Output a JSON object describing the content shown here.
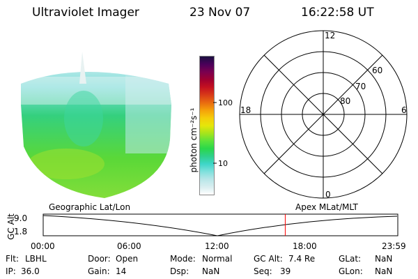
{
  "header": {
    "instrument": "Ultraviolet Imager",
    "date": "23 Nov 07",
    "time": "16:22:58 UT"
  },
  "colorbar": {
    "unit_label": "photon cm⁻²s⁻¹",
    "ticks": [
      "100",
      "10"
    ],
    "colors": [
      "#ffffff",
      "#d8eef0",
      "#b8e6e8",
      "#7fe0dc",
      "#3ed6c8",
      "#2fd08a",
      "#2ad84a",
      "#5ee23a",
      "#a6e41c",
      "#e6e60a",
      "#f5cc0a",
      "#f5a00a",
      "#e86a10",
      "#d83a18",
      "#c41020",
      "#a00030",
      "#7a0050",
      "#4a005a",
      "#1a1040"
    ]
  },
  "polar": {
    "mlt_labels": {
      "top": "12",
      "right": "6",
      "bottom": "0",
      "left": "18"
    },
    "lat_labels": [
      "60",
      "70",
      "80"
    ]
  },
  "timeline": {
    "left_title": "Geographic Lat/Lon",
    "right_title": "Apex MLat/MLT",
    "axis_name": "GC Alt",
    "y_ticks": [
      "9.0",
      "1.8"
    ],
    "x_ticks": [
      "00:00",
      "06:00",
      "12:00",
      "18:00",
      "23:59"
    ],
    "current_time_fraction": 0.6826,
    "marker_color": "#ff0000"
  },
  "status": {
    "flt_label": "Flt:",
    "flt": "LBHL",
    "ip_label": "IP:",
    "ip": "36.0",
    "door_label": "Door:",
    "door": "Open",
    "gain_label": "Gain:",
    "gain": "14",
    "mode_label": "Mode:",
    "mode": "Normal",
    "dsp_label": "Dsp:",
    "dsp": "NaN",
    "gcalt_label": "GC Alt:",
    "gcalt": "7.4 Re",
    "seq_label": "Seq:",
    "seq": "39",
    "glat_label": "GLat:",
    "glat": "NaN",
    "glon_label": "GLon:",
    "glon": "NaN"
  }
}
